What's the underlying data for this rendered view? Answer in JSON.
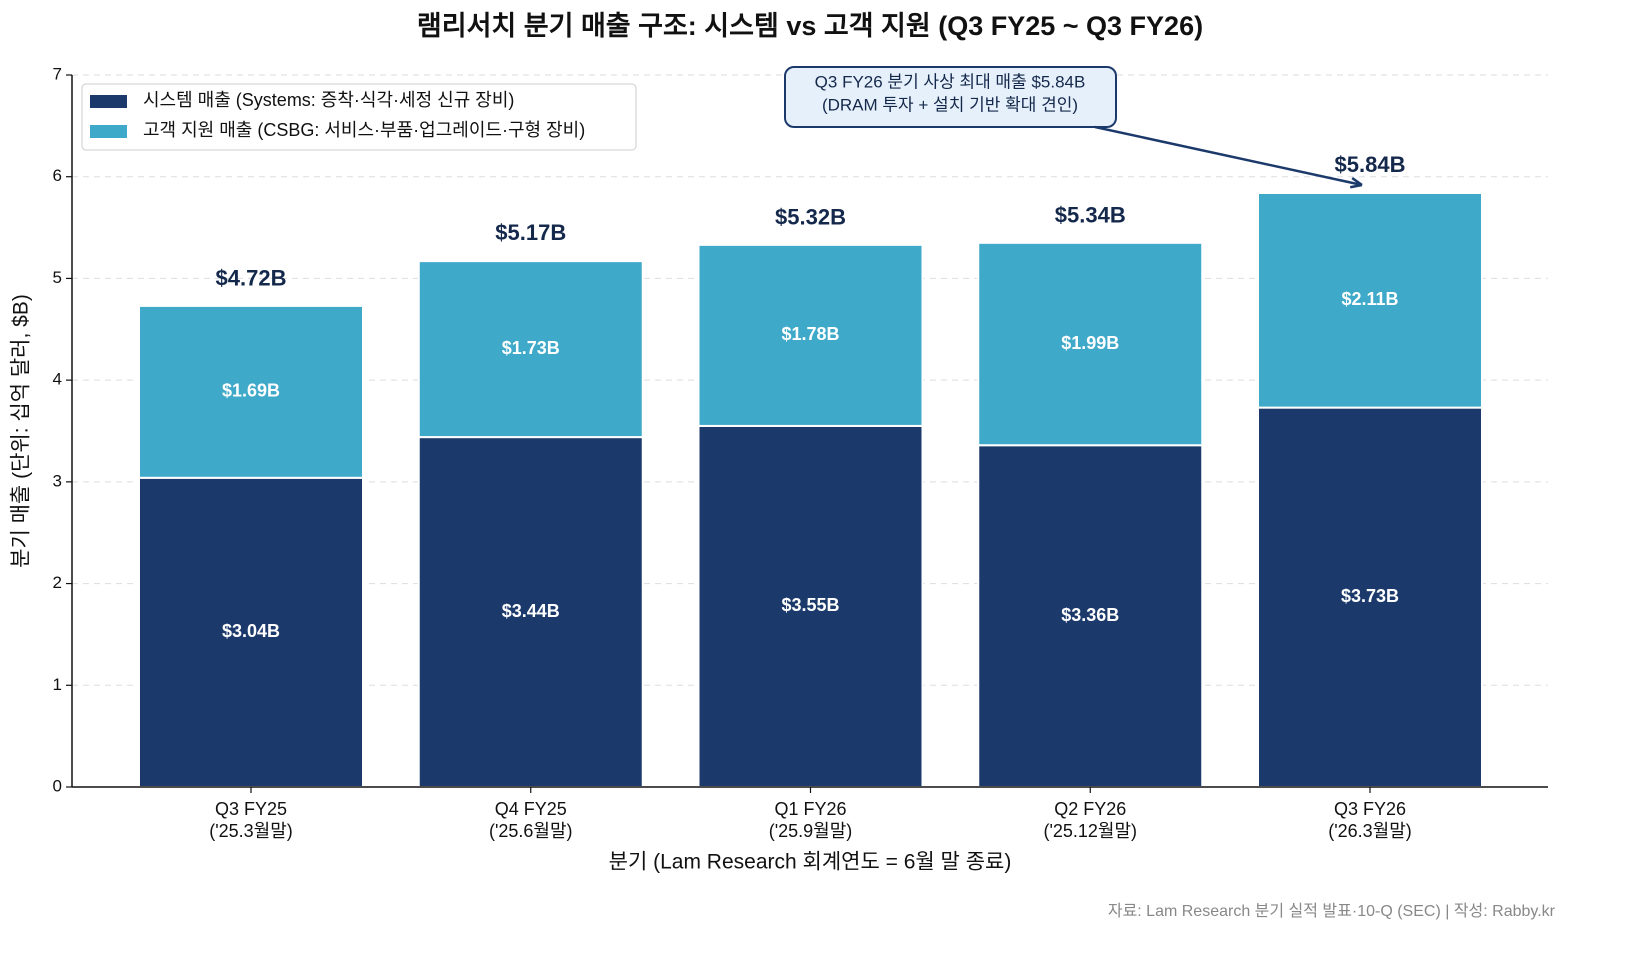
{
  "chart_data": {
    "type": "stacked-bar",
    "title": "램리서치 분기 매출 구조: 시스템 vs 고객 지원 (Q3 FY25 ~ Q3 FY26)",
    "x_label": "분기 (Lam Research 회계연도 = 6월 말 종료)",
    "y_label": "분기 매출 (단위: 십억 달러, $B)",
    "categories": [
      [
        "Q3 FY25",
        "('25.3월말)"
      ],
      [
        "Q4 FY25",
        "('25.6월말)"
      ],
      [
        "Q1 FY26",
        "('25.9월말)"
      ],
      [
        "Q2 FY26",
        "('25.12월말)"
      ],
      [
        "Q3 FY26",
        "('26.3월말)"
      ]
    ],
    "series": [
      {
        "name": "시스템 매출 (Systems: 증착·식각·세정 신규 장비)",
        "color": "#1b3a6b",
        "values": [
          3.04,
          3.44,
          3.55,
          3.36,
          3.73
        ],
        "value_labels": [
          "$3.04B",
          "$3.44B",
          "$3.55B",
          "$3.36B",
          "$3.73B"
        ]
      },
      {
        "name": "고객 지원 매출 (CSBG: 서비스·부품·업그레이드·구형 장비)",
        "color": "#3fa9c9",
        "values": [
          1.69,
          1.73,
          1.78,
          1.99,
          2.11
        ],
        "value_labels": [
          "$1.69B",
          "$1.73B",
          "$1.78B",
          "$1.99B",
          "$2.11B"
        ]
      }
    ],
    "totals": {
      "values": [
        4.72,
        5.17,
        5.32,
        5.34,
        5.84
      ],
      "value_labels": [
        "$4.72B",
        "$5.17B",
        "$5.32B",
        "$5.34B",
        "$5.84B"
      ],
      "color": "#14284b"
    },
    "annotation": [
      "Q3 FY26 분기 사상 최대 매출 $5.84B",
      "(DRAM 투자 + 설치 기반 확대 견인)"
    ],
    "source": "자료: Lam Research 분기 실적 발표·10-Q (SEC) | 작성: Rabby.kr",
    "ylim": [
      0,
      7
    ],
    "yticks": [
      0,
      1,
      2,
      3,
      4,
      5,
      6,
      7
    ],
    "grid": true,
    "legend": "upper-left"
  }
}
